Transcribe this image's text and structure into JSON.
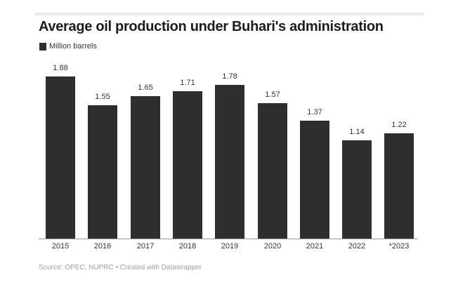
{
  "header": {
    "title": "Average oil production under Buhari's administration"
  },
  "legend": {
    "items": [
      {
        "label": "Million barrels",
        "color": "#2e2e2e"
      }
    ]
  },
  "footer": {
    "source": "Source: OPEC, NUPRC • Created with Datawrapper"
  },
  "chart_data": {
    "type": "bar",
    "title": "Average oil production under Buhari's administration",
    "xlabel": "",
    "ylabel": "Million barrels",
    "categories": [
      "2015",
      "2016",
      "2017",
      "2018",
      "2019",
      "2020",
      "2021",
      "2022",
      "*2023"
    ],
    "values": [
      1.88,
      1.55,
      1.65,
      1.71,
      1.78,
      1.57,
      1.37,
      1.14,
      1.22
    ],
    "value_labels": [
      "1.88",
      "1.55",
      "1.65",
      "1.71",
      "1.78",
      "1.57",
      "1.37",
      "1.14",
      "1.22"
    ],
    "series": [
      {
        "name": "Million barrels",
        "values": [
          1.88,
          1.55,
          1.65,
          1.71,
          1.78,
          1.57,
          1.37,
          1.14,
          1.22
        ]
      }
    ],
    "ylim": [
      0,
      1.88
    ],
    "grid": false,
    "legend_position": "top-left",
    "bar_color": "#2e2e2e"
  }
}
